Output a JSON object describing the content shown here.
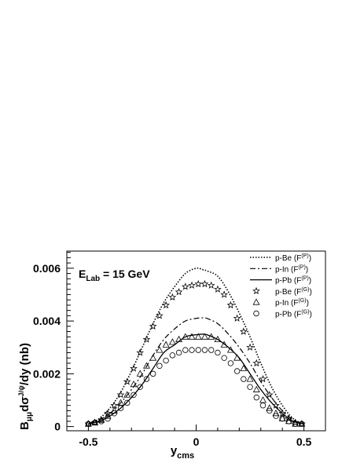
{
  "chart_data": {
    "type": "line",
    "annotation": {
      "prefix": "E",
      "sub": "Lab",
      "suffix": " = 15 GeV"
    },
    "xlabel": {
      "main": "y",
      "sub": "cms"
    },
    "ylabel": {
      "p1": "B",
      "sub1": "μμ",
      "p2": "dσ",
      "sup": "J/ψ",
      "p3": "/dy (nb)"
    },
    "xlim": [
      -0.6,
      0.6
    ],
    "ylim": [
      -0.00016,
      0.00665
    ],
    "x_ticks": [
      {
        "v": -0.5,
        "label": "-0.5"
      },
      {
        "v": 0,
        "label": "0"
      },
      {
        "v": 0.5,
        "label": "0.5"
      }
    ],
    "y_ticks": [
      {
        "v": 0,
        "label": "0"
      },
      {
        "v": 0.002,
        "label": "0.002"
      },
      {
        "v": 0.004,
        "label": "0.004"
      },
      {
        "v": 0.006,
        "label": "0.006"
      }
    ],
    "legend_position": "top-right",
    "grid": false,
    "series": [
      {
        "name": "p-Be (F",
        "sup": "(P)",
        "style": "dotted",
        "x": [
          -0.5,
          -0.45,
          -0.4,
          -0.35,
          -0.3,
          -0.25,
          -0.2,
          -0.15,
          -0.1,
          -0.05,
          0.0,
          0.03,
          0.05,
          0.1,
          0.15,
          0.2,
          0.25,
          0.3,
          0.35,
          0.4,
          0.45,
          0.5
        ],
        "y": [
          0.0001,
          0.0003,
          0.0007,
          0.0013,
          0.0021,
          0.003,
          0.0039,
          0.0047,
          0.0053,
          0.0058,
          0.006,
          0.00595,
          0.0059,
          0.0057,
          0.0051,
          0.0043,
          0.0034,
          0.0024,
          0.0015,
          0.0008,
          0.0003,
          0.0001
        ]
      },
      {
        "name": "p-In (F",
        "sup": "(P)",
        "style": "dashdot",
        "x": [
          -0.5,
          -0.45,
          -0.4,
          -0.35,
          -0.3,
          -0.25,
          -0.2,
          -0.15,
          -0.1,
          -0.05,
          0.0,
          0.03,
          0.05,
          0.1,
          0.15,
          0.2,
          0.25,
          0.3,
          0.35,
          0.4,
          0.45,
          0.5
        ],
        "y": [
          0.0001,
          0.00025,
          0.0005,
          0.0009,
          0.0014,
          0.002,
          0.0027,
          0.0033,
          0.0037,
          0.004,
          0.0041,
          0.00412,
          0.0041,
          0.0039,
          0.0035,
          0.003,
          0.0024,
          0.0017,
          0.0011,
          0.0006,
          0.00025,
          0.0001
        ]
      },
      {
        "name": "p-Pb (F",
        "sup": "(P)",
        "style": "solid",
        "x": [
          -0.5,
          -0.45,
          -0.4,
          -0.35,
          -0.3,
          -0.25,
          -0.2,
          -0.15,
          -0.1,
          -0.05,
          0.0,
          0.03,
          0.05,
          0.1,
          0.15,
          0.2,
          0.25,
          0.3,
          0.35,
          0.4,
          0.45,
          0.5
        ],
        "y": [
          0.0001,
          0.0002,
          0.0004,
          0.0007,
          0.0011,
          0.0016,
          0.0022,
          0.0028,
          0.0031,
          0.0034,
          0.00348,
          0.0035,
          0.00348,
          0.0033,
          0.003,
          0.0026,
          0.002,
          0.0014,
          0.0009,
          0.0005,
          0.0002,
          0.0001
        ]
      },
      {
        "name": "p-Be (F",
        "sup": "(G)",
        "style": "star",
        "x": [
          -0.5,
          -0.47,
          -0.44,
          -0.41,
          -0.38,
          -0.35,
          -0.32,
          -0.29,
          -0.26,
          -0.23,
          -0.2,
          -0.17,
          -0.14,
          -0.11,
          -0.08,
          -0.05,
          -0.02,
          0.01,
          0.04,
          0.07,
          0.1,
          0.13,
          0.16,
          0.19,
          0.22,
          0.25,
          0.28,
          0.31,
          0.34,
          0.37,
          0.4,
          0.43,
          0.46,
          0.49
        ],
        "y": [
          0.0001,
          0.00015,
          0.00025,
          0.0005,
          0.0008,
          0.0012,
          0.0017,
          0.0022,
          0.0028,
          0.0033,
          0.0038,
          0.0042,
          0.0046,
          0.0049,
          0.0051,
          0.0053,
          0.00535,
          0.0054,
          0.0054,
          0.00535,
          0.0052,
          0.005,
          0.0046,
          0.0041,
          0.0036,
          0.003,
          0.0024,
          0.0018,
          0.0012,
          0.0008,
          0.0005,
          0.0003,
          0.00015,
          0.0001
        ]
      },
      {
        "name": "p-In (F",
        "sup": "(G)",
        "style": "triangle",
        "x": [
          -0.5,
          -0.47,
          -0.44,
          -0.41,
          -0.38,
          -0.35,
          -0.32,
          -0.29,
          -0.26,
          -0.23,
          -0.2,
          -0.17,
          -0.14,
          -0.11,
          -0.08,
          -0.05,
          -0.02,
          0.01,
          0.04,
          0.07,
          0.1,
          0.13,
          0.16,
          0.19,
          0.22,
          0.25,
          0.28,
          0.31,
          0.34,
          0.37,
          0.4,
          0.43,
          0.46,
          0.49
        ],
        "y": [
          0.0001,
          0.00015,
          0.00025,
          0.0004,
          0.0006,
          0.0009,
          0.0012,
          0.0016,
          0.002,
          0.0023,
          0.0026,
          0.0029,
          0.0031,
          0.0032,
          0.0033,
          0.0034,
          0.0034,
          0.0034,
          0.0034,
          0.0034,
          0.0033,
          0.0031,
          0.0029,
          0.0026,
          0.0022,
          0.0018,
          0.0014,
          0.001,
          0.0007,
          0.0005,
          0.0003,
          0.0002,
          0.0001,
          0.0001
        ]
      },
      {
        "name": "p-Pb (F",
        "sup": "(G)",
        "style": "circle",
        "x": [
          -0.5,
          -0.47,
          -0.44,
          -0.41,
          -0.38,
          -0.35,
          -0.32,
          -0.29,
          -0.26,
          -0.23,
          -0.2,
          -0.17,
          -0.14,
          -0.11,
          -0.08,
          -0.05,
          -0.02,
          0.01,
          0.04,
          0.07,
          0.1,
          0.13,
          0.16,
          0.19,
          0.22,
          0.25,
          0.28,
          0.31,
          0.34,
          0.37,
          0.4,
          0.43,
          0.46,
          0.49
        ],
        "y": [
          0.0001,
          0.00015,
          0.0002,
          0.0003,
          0.0005,
          0.0007,
          0.0009,
          0.0012,
          0.0015,
          0.0018,
          0.002,
          0.0023,
          0.0025,
          0.0027,
          0.0028,
          0.0029,
          0.0029,
          0.0029,
          0.0029,
          0.0029,
          0.0028,
          0.0026,
          0.0024,
          0.0021,
          0.0018,
          0.0015,
          0.0011,
          0.0008,
          0.0006,
          0.0004,
          0.0003,
          0.0002,
          0.0001,
          0.0001
        ]
      }
    ]
  }
}
